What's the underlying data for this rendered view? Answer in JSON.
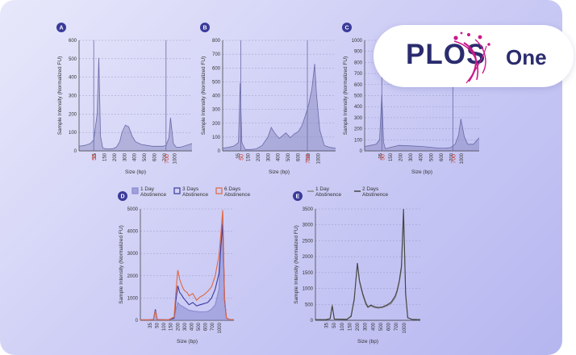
{
  "logo": {
    "brand": "PLOS",
    "product": "One",
    "swoosh_color": "#c8188b",
    "text_color": "#2a2c6e"
  },
  "chart_data": [
    {
      "id": "A",
      "type": "area",
      "ylabel": "Sample Intensity (Normalized FU)",
      "xlabel": "Size (bp)",
      "ylim": [
        0,
        600
      ],
      "yticks": [
        0,
        100,
        200,
        300,
        400,
        500,
        600
      ],
      "xlim": [
        0,
        1
      ],
      "xtick_labels": [
        "35",
        "150",
        "200",
        "300",
        "400",
        "500",
        "600",
        "700",
        "1000"
      ],
      "markers": [
        "50",
        "700"
      ],
      "series": [
        {
          "color": "#6a6aa8",
          "x": [
            0,
            0.05,
            0.1,
            0.13,
            0.16,
            0.175,
            0.19,
            0.21,
            0.25,
            0.3,
            0.33,
            0.36,
            0.38,
            0.41,
            0.44,
            0.47,
            0.5,
            0.55,
            0.6,
            0.65,
            0.7,
            0.74,
            0.77,
            0.795,
            0.81,
            0.835,
            0.86,
            0.9,
            0.95,
            1
          ],
          "y": [
            25,
            30,
            40,
            60,
            200,
            505,
            80,
            15,
            10,
            12,
            20,
            50,
            100,
            140,
            130,
            80,
            50,
            35,
            30,
            25,
            25,
            25,
            30,
            70,
            180,
            40,
            20,
            20,
            30,
            40
          ]
        }
      ]
    },
    {
      "id": "B",
      "type": "area",
      "ylabel": "Sample Intensity (Normalized FU)",
      "xlabel": "Size (bp)",
      "ylim": [
        0,
        800
      ],
      "yticks": [
        0,
        100,
        200,
        300,
        400,
        500,
        600,
        700,
        800
      ],
      "xlim": [
        0,
        1
      ],
      "xtick_labels": [
        "35",
        "150",
        "200",
        "300",
        "400",
        "500",
        "600",
        "700",
        "1000"
      ],
      "markers": [
        "50",
        "700"
      ],
      "series": [
        {
          "color": "#6a6aa8",
          "x": [
            0,
            0.05,
            0.1,
            0.14,
            0.155,
            0.17,
            0.2,
            0.25,
            0.3,
            0.35,
            0.4,
            0.43,
            0.46,
            0.5,
            0.53,
            0.56,
            0.6,
            0.63,
            0.67,
            0.7,
            0.73,
            0.76,
            0.79,
            0.815,
            0.83,
            0.86,
            0.9,
            0.95,
            1
          ],
          "y": [
            20,
            25,
            35,
            60,
            490,
            60,
            10,
            10,
            15,
            40,
            100,
            170,
            130,
            90,
            110,
            130,
            95,
            120,
            140,
            180,
            250,
            330,
            450,
            630,
            420,
            150,
            40,
            25,
            20
          ]
        }
      ]
    },
    {
      "id": "C",
      "type": "area",
      "ylabel": "Sample Intensity (Normalized FU)",
      "xlabel": "Size (bp)",
      "ylim": [
        0,
        1000
      ],
      "yticks": [
        0,
        100,
        200,
        300,
        400,
        500,
        600,
        700,
        800,
        900,
        1000
      ],
      "xlim": [
        0,
        1
      ],
      "xtick_labels": [
        "35",
        "150",
        "200",
        "300",
        "400",
        "500",
        "600",
        "700",
        "1000"
      ],
      "markers": [
        "50",
        "700"
      ],
      "series": [
        {
          "color": "#6a6aa8",
          "x": [
            0,
            0.05,
            0.1,
            0.13,
            0.15,
            0.165,
            0.18,
            0.22,
            0.3,
            0.4,
            0.5,
            0.6,
            0.65,
            0.7,
            0.75,
            0.79,
            0.82,
            0.84,
            0.87,
            0.9,
            0.95,
            1
          ],
          "y": [
            40,
            50,
            60,
            100,
            510,
            80,
            20,
            30,
            50,
            45,
            40,
            30,
            25,
            25,
            30,
            60,
            140,
            290,
            130,
            60,
            60,
            120
          ]
        }
      ]
    },
    {
      "id": "D",
      "type": "area",
      "ylabel": "Sample Intensity (Normalized FU)",
      "xlabel": "Size (bp)",
      "ylim": [
        0,
        5000
      ],
      "yticks": [
        0,
        1000,
        2000,
        3000,
        4000,
        5000
      ],
      "xlim": [
        0,
        1
      ],
      "xtick_labels": [
        "35",
        "50",
        "100",
        "150",
        "200",
        "300",
        "400",
        "500",
        "600",
        "700",
        "1000"
      ],
      "legend": [
        "1 Day Abstinence",
        "3 Days Abstinence",
        "6 Days Abstinence"
      ],
      "series": [
        {
          "name": "1 Day Abstinence",
          "color": "#8a8ad0",
          "fill": true,
          "x": [
            0,
            0.1,
            0.14,
            0.16,
            0.18,
            0.3,
            0.36,
            0.38,
            0.4,
            0.42,
            0.44,
            0.46,
            0.48,
            0.5,
            0.52,
            0.56,
            0.6,
            0.64,
            0.68,
            0.72,
            0.76,
            0.8,
            0.84,
            0.86,
            0.88,
            0.9,
            0.92,
            0.95,
            1
          ],
          "y": [
            20,
            20,
            40,
            500,
            30,
            20,
            80,
            500,
            800,
            700,
            650,
            600,
            550,
            500,
            450,
            420,
            400,
            380,
            380,
            400,
            500,
            700,
            1400,
            3400,
            4700,
            900,
            100,
            40,
            20
          ]
        },
        {
          "name": "3 Days Abstinence",
          "color": "#3a3aa0",
          "fill": false,
          "x": [
            0,
            0.1,
            0.14,
            0.16,
            0.18,
            0.3,
            0.36,
            0.38,
            0.4,
            0.42,
            0.44,
            0.46,
            0.48,
            0.5,
            0.52,
            0.56,
            0.6,
            0.64,
            0.68,
            0.72,
            0.76,
            0.8,
            0.84,
            0.86,
            0.88,
            0.9,
            0.92,
            0.95,
            1
          ],
          "y": [
            20,
            20,
            40,
            480,
            30,
            20,
            100,
            900,
            1550,
            1250,
            1150,
            1000,
            900,
            800,
            700,
            800,
            650,
            700,
            750,
            800,
            1000,
            1400,
            2100,
            3300,
            4300,
            900,
            100,
            40,
            20
          ]
        },
        {
          "name": "6 Days Abstinence",
          "color": "#e06840",
          "fill": false,
          "x": [
            0,
            0.1,
            0.14,
            0.16,
            0.18,
            0.3,
            0.36,
            0.38,
            0.4,
            0.42,
            0.44,
            0.46,
            0.48,
            0.5,
            0.52,
            0.56,
            0.6,
            0.64,
            0.68,
            0.72,
            0.76,
            0.8,
            0.84,
            0.86,
            0.88,
            0.9,
            0.92,
            0.95,
            1
          ],
          "y": [
            20,
            20,
            40,
            420,
            30,
            20,
            150,
            1300,
            2250,
            1850,
            1600,
            1400,
            1300,
            1250,
            1100,
            1200,
            900,
            1050,
            1150,
            1300,
            1500,
            2000,
            2900,
            3900,
            4950,
            1000,
            100,
            40,
            20
          ]
        }
      ]
    },
    {
      "id": "E",
      "type": "line",
      "ylabel": "Sample Intensity (Normalized FU)",
      "xlabel": "Size (bp)",
      "ylim": [
        0,
        3500
      ],
      "yticks": [
        0,
        500,
        1000,
        1500,
        2000,
        2500,
        3000,
        3500
      ],
      "xlim": [
        0,
        1
      ],
      "xtick_labels": [
        "35",
        "50",
        "100",
        "150",
        "200",
        "300",
        "400",
        "500",
        "600",
        "700",
        "1000"
      ],
      "legend": [
        "1 Day Abstinence",
        "2 Days Abstinence"
      ],
      "series": [
        {
          "name": "1 Day Abstinence",
          "color": "#888888",
          "x": [
            0,
            0.1,
            0.14,
            0.16,
            0.18,
            0.3,
            0.34,
            0.37,
            0.4,
            0.42,
            0.45,
            0.48,
            0.5,
            0.53,
            0.56,
            0.6,
            0.64,
            0.68,
            0.72,
            0.76,
            0.78,
            0.8,
            0.82,
            0.84,
            0.86,
            0.88,
            0.92,
            1
          ],
          "y": [
            20,
            20,
            50,
            500,
            40,
            30,
            150,
            700,
            1750,
            1200,
            800,
            500,
            400,
            450,
            400,
            380,
            400,
            450,
            520,
            700,
            900,
            1200,
            1600,
            3300,
            800,
            80,
            30,
            20
          ]
        },
        {
          "name": "2 Days Abstinence",
          "color": "#444444",
          "x": [
            0,
            0.1,
            0.14,
            0.16,
            0.18,
            0.3,
            0.34,
            0.37,
            0.4,
            0.42,
            0.45,
            0.48,
            0.5,
            0.53,
            0.56,
            0.6,
            0.64,
            0.68,
            0.72,
            0.76,
            0.78,
            0.8,
            0.82,
            0.84,
            0.86,
            0.88,
            0.92,
            1
          ],
          "y": [
            20,
            20,
            50,
            450,
            40,
            30,
            120,
            650,
            1800,
            1250,
            850,
            550,
            420,
            480,
            430,
            400,
            420,
            480,
            560,
            760,
            950,
            1250,
            1700,
            3500,
            850,
            80,
            30,
            20
          ]
        }
      ]
    }
  ]
}
